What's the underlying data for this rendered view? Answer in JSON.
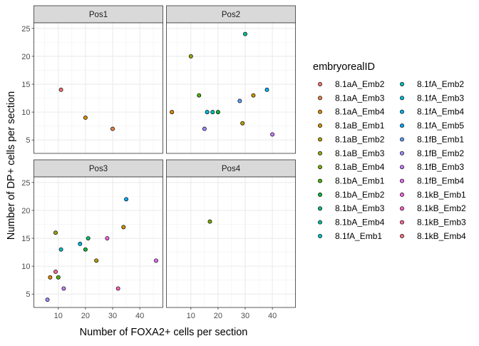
{
  "chart_data": {
    "type": "scatter",
    "xlabel": "Number of FOXA2+ cells per section",
    "ylabel": "Number of DP+ cells per section",
    "xlim": [
      1,
      48.5
    ],
    "ylim": [
      2.6,
      26
    ],
    "x_ticks": [
      10,
      20,
      30,
      40
    ],
    "y_ticks": [
      5,
      10,
      15,
      20,
      25
    ],
    "grid": true,
    "legend_position": "right",
    "legend_title": "embryorealID",
    "facet_titles": [
      "Pos1",
      "Pos2",
      "Pos3",
      "Pos4"
    ],
    "series": [
      {
        "name": "8.1aA_Emb2",
        "color": "#F8766D"
      },
      {
        "name": "8.1aA_Emb3",
        "color": "#EE8044"
      },
      {
        "name": "8.1aA_Emb4",
        "color": "#E18A00"
      },
      {
        "name": "8.1aB_Emb1",
        "color": "#D09400"
      },
      {
        "name": "8.1aB_Emb2",
        "color": "#B79F00"
      },
      {
        "name": "8.1aB_Emb3",
        "color": "#9CA700"
      },
      {
        "name": "8.1aB_Emb4",
        "color": "#7CAE00"
      },
      {
        "name": "8.1bA_Emb1",
        "color": "#4BB400"
      },
      {
        "name": "8.1bA_Emb2",
        "color": "#00BA38"
      },
      {
        "name": "8.1bA_Emb3",
        "color": "#00BE70"
      },
      {
        "name": "8.1bA_Emb4",
        "color": "#00C19A"
      },
      {
        "name": "8.1fA_Emb1",
        "color": "#00BFC4"
      },
      {
        "name": "8.1fA_Emb2",
        "color": "#00C0B5"
      },
      {
        "name": "8.1fA_Emb3",
        "color": "#00BCD8"
      },
      {
        "name": "8.1fA_Emb4",
        "color": "#00B4F0"
      },
      {
        "name": "8.1fA_Emb5",
        "color": "#00A9FF"
      },
      {
        "name": "8.1fB_Emb1",
        "color": "#619CFF"
      },
      {
        "name": "8.1fB_Emb2",
        "color": "#9C8DFF"
      },
      {
        "name": "8.1fB_Emb3",
        "color": "#C77CFF"
      },
      {
        "name": "8.1fB_Emb4",
        "color": "#E76BF3"
      },
      {
        "name": "8.1kB_Emb1",
        "color": "#F564E3"
      },
      {
        "name": "8.1kB_Emb2",
        "color": "#FF62BC"
      },
      {
        "name": "8.1kB_Emb3",
        "color": "#FF6A98"
      },
      {
        "name": "8.1kB_Emb4",
        "color": "#FC717F"
      }
    ],
    "facets": [
      {
        "title": "Pos1",
        "points": [
          {
            "x": 11,
            "y": 14,
            "color": "#F8766D"
          },
          {
            "x": 20,
            "y": 9,
            "color": "#E18A00"
          },
          {
            "x": 30,
            "y": 7,
            "color": "#EE8044"
          }
        ]
      },
      {
        "title": "Pos2",
        "points": [
          {
            "x": 30,
            "y": 24,
            "color": "#00C19A"
          },
          {
            "x": 10,
            "y": 20,
            "color": "#9CA700"
          },
          {
            "x": 38,
            "y": 14,
            "color": "#00B4F0"
          },
          {
            "x": 13,
            "y": 13,
            "color": "#4BB400"
          },
          {
            "x": 33,
            "y": 13,
            "color": "#D09400"
          },
          {
            "x": 28,
            "y": 12,
            "color": "#619CFF"
          },
          {
            "x": 16,
            "y": 10,
            "color": "#00BCD8"
          },
          {
            "x": 18,
            "y": 10,
            "color": "#00C0B5"
          },
          {
            "x": 20,
            "y": 10,
            "color": "#00BA38"
          },
          {
            "x": 3,
            "y": 10,
            "color": "#E18A00"
          },
          {
            "x": 29,
            "y": 8,
            "color": "#B79F00"
          },
          {
            "x": 15,
            "y": 7,
            "color": "#9C8DFF"
          },
          {
            "x": 40,
            "y": 6,
            "color": "#C77CFF"
          }
        ]
      },
      {
        "title": "Pos3",
        "points": [
          {
            "x": 35,
            "y": 22,
            "color": "#00A9FF"
          },
          {
            "x": 34,
            "y": 17,
            "color": "#D09400"
          },
          {
            "x": 9,
            "y": 16,
            "color": "#9CA700"
          },
          {
            "x": 21,
            "y": 15,
            "color": "#00BE70"
          },
          {
            "x": 28,
            "y": 15,
            "color": "#F564E3"
          },
          {
            "x": 18,
            "y": 14,
            "color": "#00B4F0"
          },
          {
            "x": 11,
            "y": 13,
            "color": "#00BFC4"
          },
          {
            "x": 20,
            "y": 13,
            "color": "#00BA38"
          },
          {
            "x": 24,
            "y": 11,
            "color": "#B79F00"
          },
          {
            "x": 46,
            "y": 11,
            "color": "#E76BF3"
          },
          {
            "x": 9,
            "y": 9,
            "color": "#FF6A98"
          },
          {
            "x": 7,
            "y": 8,
            "color": "#E18A00"
          },
          {
            "x": 10,
            "y": 8,
            "color": "#4BB400"
          },
          {
            "x": 12,
            "y": 6,
            "color": "#C77CFF"
          },
          {
            "x": 32,
            "y": 6,
            "color": "#FF62BC"
          },
          {
            "x": 6,
            "y": 4,
            "color": "#9C8DFF"
          }
        ]
      },
      {
        "title": "Pos4",
        "points": [
          {
            "x": 17,
            "y": 18,
            "color": "#7CAE00"
          }
        ]
      }
    ]
  }
}
